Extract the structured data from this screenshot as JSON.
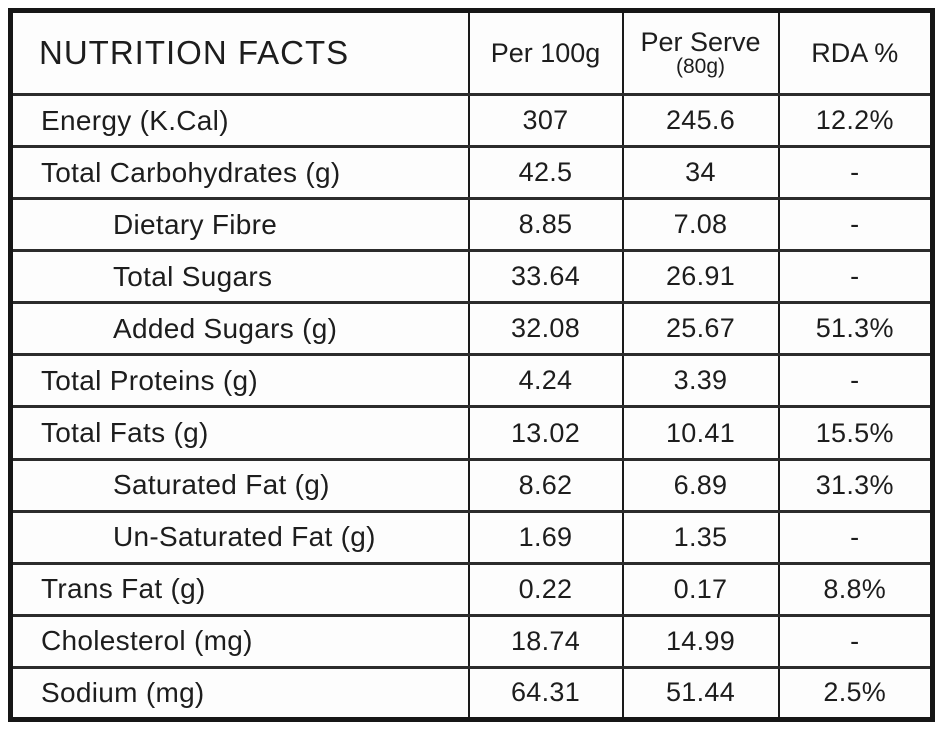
{
  "table": {
    "title": "NUTRITION FACTS",
    "columns": [
      {
        "label": "Per 100g",
        "sublabel": ""
      },
      {
        "label": "Per Serve",
        "sublabel": "(80g)"
      },
      {
        "label": "RDA %",
        "sublabel": ""
      }
    ],
    "rows": [
      {
        "label": "Energy (K.Cal)",
        "sub_item": false,
        "per_100g": "307",
        "per_serve": "245.6",
        "rda": "12.2%"
      },
      {
        "label": "Total Carbohydrates (g)",
        "sub_item": false,
        "per_100g": "42.5",
        "per_serve": "34",
        "rda": "-"
      },
      {
        "label": "Dietary Fibre",
        "sub_item": true,
        "per_100g": "8.85",
        "per_serve": "7.08",
        "rda": "-"
      },
      {
        "label": "Total Sugars",
        "sub_item": true,
        "per_100g": "33.64",
        "per_serve": "26.91",
        "rda": "-"
      },
      {
        "label": "Added Sugars (g)",
        "sub_item": true,
        "per_100g": "32.08",
        "per_serve": "25.67",
        "rda": "51.3%"
      },
      {
        "label": "Total Proteins (g)",
        "sub_item": false,
        "per_100g": "4.24",
        "per_serve": "3.39",
        "rda": "-"
      },
      {
        "label": "Total Fats (g)",
        "sub_item": false,
        "per_100g": "13.02",
        "per_serve": "10.41",
        "rda": "15.5%"
      },
      {
        "label": "Saturated Fat (g)",
        "sub_item": true,
        "per_100g": "8.62",
        "per_serve": "6.89",
        "rda": "31.3%"
      },
      {
        "label": "Un-Saturated Fat (g)",
        "sub_item": true,
        "per_100g": "1.69",
        "per_serve": "1.35",
        "rda": "-"
      },
      {
        "label": "Trans Fat (g)",
        "sub_item": false,
        "per_100g": "0.22",
        "per_serve": "0.17",
        "rda": "8.8%"
      },
      {
        "label": "Cholesterol (mg)",
        "sub_item": false,
        "per_100g": "18.74",
        "per_serve": "14.99",
        "rda": "-"
      },
      {
        "label": "Sodium (mg)",
        "sub_item": false,
        "per_100g": "64.31",
        "per_serve": "51.44",
        "rda": "2.5%"
      }
    ]
  },
  "chart_data": {
    "type": "table",
    "title": "NUTRITION FACTS",
    "columns": [
      "NUTRITION FACTS",
      "Per 100g",
      "Per Serve (80g)",
      "RDA %"
    ],
    "rows": [
      [
        "Energy (K.Cal)",
        307,
        245.6,
        "12.2%"
      ],
      [
        "Total Carbohydrates (g)",
        42.5,
        34,
        "-"
      ],
      [
        "Dietary Fibre",
        8.85,
        7.08,
        "-"
      ],
      [
        "Total Sugars",
        33.64,
        26.91,
        "-"
      ],
      [
        "Added Sugars (g)",
        32.08,
        25.67,
        "51.3%"
      ],
      [
        "Total Proteins (g)",
        4.24,
        3.39,
        "-"
      ],
      [
        "Total Fats (g)",
        13.02,
        10.41,
        "15.5%"
      ],
      [
        "Saturated Fat (g)",
        8.62,
        6.89,
        "31.3%"
      ],
      [
        "Un-Saturated Fat (g)",
        1.69,
        1.35,
        "-"
      ],
      [
        "Trans Fat (g)",
        0.22,
        0.17,
        "8.8%"
      ],
      [
        "Cholesterol (mg)",
        18.74,
        14.99,
        "-"
      ],
      [
        "Sodium (mg)",
        64.31,
        51.44,
        "2.5%"
      ]
    ],
    "notes": "Nutrition facts panel; sub-items indented under parent nutrients",
    "colors": {
      "text": "#1d1d1d",
      "border": "#161616",
      "background": "#fdfdfd"
    }
  }
}
